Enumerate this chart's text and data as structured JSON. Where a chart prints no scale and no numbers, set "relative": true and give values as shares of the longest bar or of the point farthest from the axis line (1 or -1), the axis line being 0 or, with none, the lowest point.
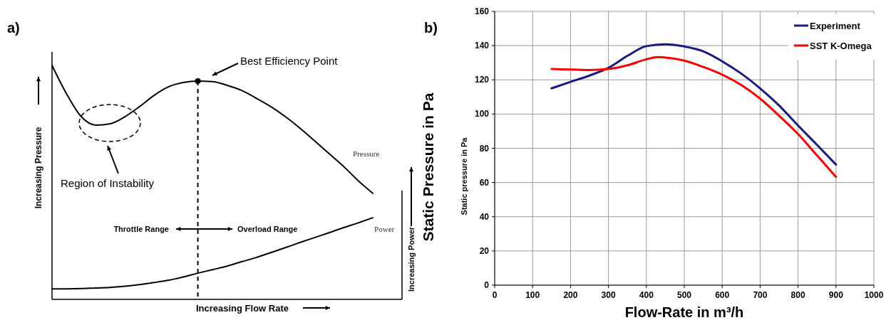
{
  "chart_data": [
    {
      "type": "line",
      "title": "a)",
      "xlabel": "Increasing Flow Rate",
      "ylabel": "Increasing Pressure",
      "y2label": "Increasing Power",
      "relative": true,
      "categories": [
        null,
        null,
        null,
        null,
        null,
        null,
        null,
        null,
        null,
        null,
        null,
        null,
        null,
        null,
        null,
        null,
        null,
        null,
        null,
        null,
        null,
        null,
        null,
        null,
        null
      ],
      "series": [
        {
          "name": "Pressure",
          "color": "#000000",
          "values": [
            1.0,
            0.878,
            0.781,
            0.745,
            0.751,
            0.781,
            0.824,
            0.872,
            0.909,
            0.927,
            0.933,
            0.931,
            0.915,
            0.893,
            0.86,
            0.824,
            0.781,
            0.732,
            0.678,
            0.623,
            0.568,
            0.507,
            0.453,
            null,
            null
          ]
        },
        {
          "name": "Power",
          "color": "#000000",
          "values": [
            0.045,
            0.045,
            0.046,
            0.049,
            0.051,
            0.056,
            0.063,
            0.072,
            0.082,
            0.096,
            0.112,
            0.127,
            0.142,
            0.161,
            0.179,
            0.2,
            0.221,
            0.243,
            0.264,
            0.285,
            0.307,
            0.327,
            0.349,
            null,
            null
          ]
        }
      ],
      "annotations": [
        "Best Efficiency Point",
        "Region of Instability",
        "Throttle Range",
        "Overload Range"
      ]
    },
    {
      "type": "line",
      "title": "b)",
      "xlabel": "Flow-Rate in m³/h",
      "ylabel": "Static pressure in Pa",
      "annotations": [
        "Static Pressure in Pa"
      ],
      "xlim": [
        0,
        1000
      ],
      "xticks": [
        0,
        100,
        200,
        300,
        400,
        500,
        600,
        700,
        800,
        900,
        1000
      ],
      "ylim": [
        0,
        160
      ],
      "yticks": [
        0,
        20,
        40,
        60,
        80,
        100,
        120,
        140,
        160
      ],
      "grid": true,
      "legend": "top right",
      "series": [
        {
          "name": "Experiment",
          "color": "#1a1a80",
          "x": [
            150,
            200,
            250,
            300,
            350,
            400,
            450,
            500,
            550,
            600,
            650,
            700,
            750,
            800,
            850,
            900
          ],
          "values": [
            115,
            118.8,
            122.5,
            127,
            134,
            139.7,
            140.8,
            139.5,
            136.7,
            130.8,
            123.7,
            115,
            105,
            93.3,
            82,
            70.5
          ]
        },
        {
          "name": "SST K-Omega",
          "color": "#ff0000",
          "x": [
            150,
            200,
            250,
            300,
            350,
            400,
            430,
            450,
            500,
            550,
            600,
            650,
            700,
            750,
            800,
            850,
            900
          ],
          "values": [
            126.3,
            126,
            125.7,
            126.3,
            128.5,
            132,
            133.3,
            133,
            131.2,
            127.5,
            123,
            117,
            109,
            99,
            88.3,
            75.8,
            63.3
          ]
        }
      ]
    }
  ]
}
